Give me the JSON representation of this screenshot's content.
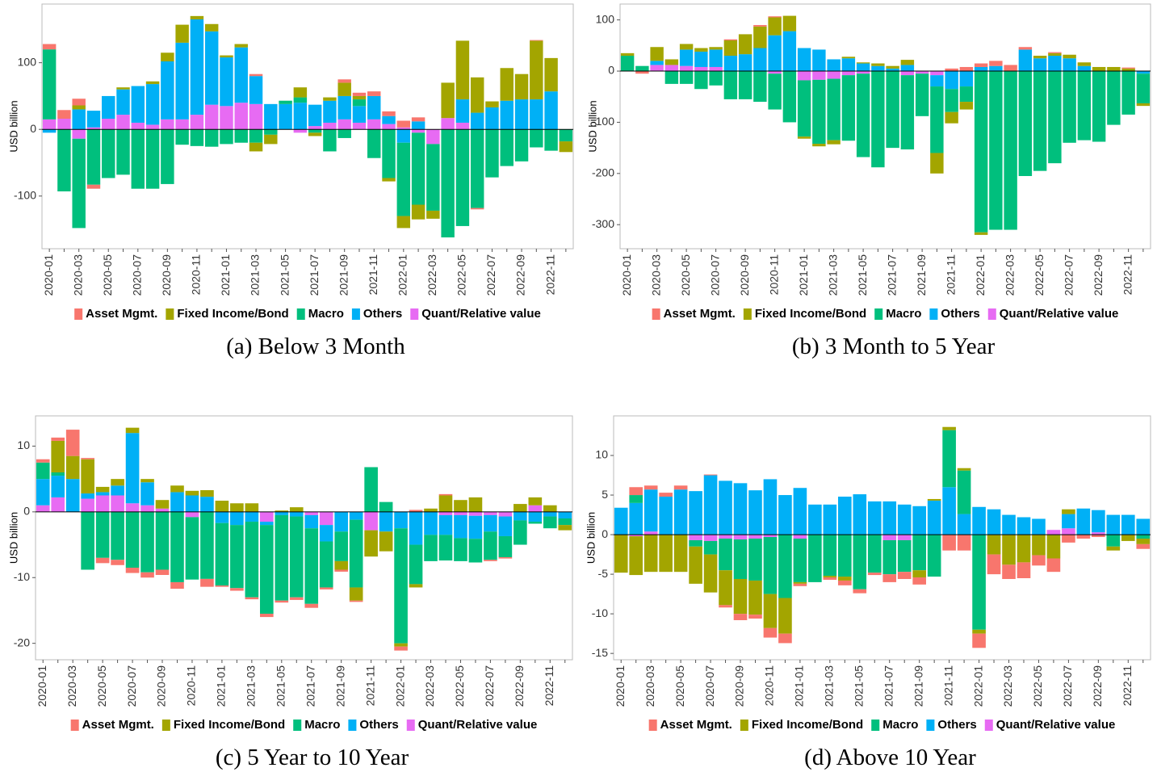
{
  "chart_data": [
    {
      "type": "bar",
      "stacked": true,
      "ylabel": "USD billion",
      "caption": "(a) Below 3 Month",
      "categories": [
        "2020-01",
        null,
        "2020-03",
        null,
        "2020-05",
        null,
        "2020-07",
        null,
        "2020-09",
        null,
        "2020-11",
        null,
        "2021-01",
        null,
        "2021-03",
        null,
        "2021-05",
        null,
        "2021-07",
        null,
        "2021-09",
        null,
        "2021-11",
        null,
        "2022-01",
        null,
        "2022-03",
        null,
        "2022-05",
        null,
        "2022-07",
        null,
        "2022-09",
        null,
        "2022-11",
        null
      ],
      "ylim": [
        -179,
        188
      ],
      "yticks": [
        -100,
        0,
        100
      ],
      "series": [
        {
          "name": "Asset Mgmt.",
          "color": "#F8766D",
          "values": [
            8,
            13,
            10,
            -6,
            0,
            0,
            0,
            0,
            0,
            0,
            0,
            0,
            0,
            0,
            3,
            0,
            0,
            0,
            0,
            0,
            5,
            5,
            7,
            7,
            10,
            6,
            0,
            0,
            0,
            -2,
            0,
            0,
            0,
            1,
            0,
            0
          ]
        },
        {
          "name": "Fixed Income/Bond",
          "color": "#A3A500",
          "values": [
            0,
            0,
            6,
            0,
            0,
            3,
            0,
            4,
            13,
            27,
            5,
            11,
            3,
            5,
            -13,
            -14,
            0,
            15,
            -5,
            5,
            20,
            5,
            0,
            -5,
            -18,
            -22,
            -12,
            53,
            88,
            53,
            9,
            49,
            38,
            88,
            50,
            -16
          ]
        },
        {
          "name": "Macro",
          "color": "#00BF7D",
          "values": [
            105,
            -93,
            -134,
            -83,
            -73,
            -68,
            -89,
            -89,
            -82,
            -23,
            -25,
            -26,
            -22,
            -20,
            -20,
            -8,
            5,
            8,
            -5,
            -33,
            -13,
            10,
            -43,
            -73,
            -110,
            -108,
            -100,
            -162,
            -145,
            -118,
            -72,
            -55,
            -48,
            -27,
            -32,
            -18
          ]
        },
        {
          "name": "Others",
          "color": "#00B0F6",
          "values": [
            -5,
            0,
            30,
            25,
            34,
            38,
            55,
            61,
            87,
            115,
            143,
            110,
            73,
            83,
            42,
            38,
            38,
            40,
            32,
            33,
            35,
            25,
            35,
            12,
            -20,
            12,
            0,
            0,
            35,
            25,
            33,
            43,
            45,
            45,
            57,
            0
          ]
        },
        {
          "name": "Quant/Relative value",
          "color": "#E76BF3",
          "values": [
            15,
            16,
            -14,
            3,
            16,
            22,
            10,
            7,
            15,
            15,
            22,
            37,
            35,
            40,
            38,
            0,
            0,
            -5,
            5,
            10,
            15,
            10,
            15,
            8,
            3,
            -5,
            -22,
            17,
            10,
            0,
            0,
            0,
            0,
            0,
            0,
            0
          ]
        }
      ]
    },
    {
      "type": "bar",
      "stacked": true,
      "ylabel": "USD billion",
      "caption": "(b) 3 Month to 5 Year",
      "categories": [
        "2020-01",
        null,
        "2020-03",
        null,
        "2020-05",
        null,
        "2020-07",
        null,
        "2020-09",
        null,
        "2020-11",
        null,
        "2021-01",
        null,
        "2021-03",
        null,
        "2021-05",
        null,
        "2021-07",
        null,
        "2021-09",
        null,
        "2021-11",
        null,
        "2022-01",
        null,
        "2022-03",
        null,
        "2022-05",
        null,
        "2022-07",
        null,
        "2022-09",
        null,
        "2022-11",
        null
      ],
      "ylim": [
        -347,
        131
      ],
      "yticks": [
        -300,
        -200,
        -100,
        0,
        100
      ],
      "series": [
        {
          "name": "Asset Mgmt.",
          "color": "#F8766D",
          "values": [
            0,
            -5,
            0,
            0,
            0,
            0,
            0,
            2,
            0,
            3,
            2,
            0,
            0,
            0,
            0,
            0,
            0,
            0,
            0,
            0,
            0,
            0,
            5,
            8,
            7,
            10,
            12,
            5,
            0,
            2,
            0,
            0,
            0,
            0,
            2,
            0
          ]
        },
        {
          "name": "Fixed Income/Bond",
          "color": "#A3A500",
          "values": [
            5,
            0,
            27,
            11,
            11,
            7,
            5,
            30,
            39,
            42,
            35,
            30,
            -4,
            -5,
            -8,
            3,
            2,
            5,
            5,
            10,
            0,
            -40,
            -22,
            -15,
            -5,
            0,
            0,
            0,
            5,
            5,
            7,
            7,
            8,
            8,
            5,
            -5
          ]
        },
        {
          "name": "Macro",
          "color": "#00BF7D",
          "values": [
            30,
            10,
            0,
            -25,
            -25,
            -35,
            -28,
            -55,
            -55,
            -60,
            -70,
            -100,
            -110,
            -125,
            -120,
            -128,
            -163,
            -188,
            -150,
            -145,
            -83,
            -130,
            -45,
            -30,
            -315,
            -310,
            -310,
            -205,
            -195,
            -180,
            -140,
            -135,
            -138,
            -105,
            -85,
            -58
          ]
        },
        {
          "name": "Others",
          "color": "#00B0F6",
          "values": [
            0,
            0,
            8,
            0,
            32,
            30,
            34,
            30,
            33,
            45,
            70,
            78,
            45,
            42,
            23,
            25,
            15,
            10,
            5,
            12,
            0,
            -22,
            -35,
            -30,
            8,
            10,
            0,
            42,
            25,
            30,
            25,
            10,
            0,
            0,
            0,
            -5
          ]
        },
        {
          "name": "Quant/Relative value",
          "color": "#E76BF3",
          "values": [
            0,
            0,
            12,
            12,
            10,
            8,
            8,
            0,
            0,
            0,
            -5,
            0,
            -18,
            -17,
            -15,
            -8,
            -5,
            0,
            0,
            -8,
            -5,
            -8,
            0,
            0,
            0,
            0,
            0,
            0,
            0,
            0,
            0,
            0,
            0,
            0,
            0,
            0
          ]
        }
      ]
    },
    {
      "type": "bar",
      "stacked": true,
      "ylabel": "USD billion",
      "caption": "(c) 5 Year to 10 Year",
      "categories": [
        "2020-01",
        null,
        "2020-03",
        null,
        "2020-05",
        null,
        "2020-07",
        null,
        "2020-09",
        null,
        "2020-11",
        null,
        "2021-01",
        null,
        "2021-03",
        null,
        "2021-05",
        null,
        "2021-07",
        null,
        "2021-09",
        null,
        "2021-11",
        null,
        "2022-01",
        null,
        "2022-03",
        null,
        "2022-05",
        null,
        "2022-07",
        null,
        "2022-09",
        null,
        "2022-11",
        null
      ],
      "ylim": [
        -22.5,
        14.6
      ],
      "yticks": [
        -20,
        -10,
        0,
        10
      ],
      "series": [
        {
          "name": "Asset Mgmt.",
          "color": "#F8766D",
          "values": [
            0.5,
            0.5,
            4,
            0.2,
            -0.8,
            -0.8,
            -0.8,
            -0.8,
            -0.8,
            -1,
            0,
            -1.2,
            -0.2,
            -0.4,
            -0.3,
            -0.5,
            -0.3,
            -0.4,
            -0.6,
            -0.3,
            -0.3,
            -0.2,
            0,
            0,
            -0.6,
            0.3,
            0,
            0.2,
            0,
            0,
            -0.2,
            -0.2,
            0,
            0,
            0,
            0
          ]
        },
        {
          "name": "Fixed Income/Bond",
          "color": "#A3A500",
          "values": [
            0,
            4.8,
            3.5,
            5.2,
            0.8,
            1,
            0.8,
            0.5,
            1.3,
            1,
            0.7,
            1,
            1.7,
            1.3,
            1.3,
            0,
            0.2,
            0.7,
            0,
            0,
            -1.3,
            -2,
            -4,
            -3,
            -0.5,
            -0.5,
            0.5,
            2.5,
            1.8,
            2.2,
            0,
            0,
            1.2,
            1.2,
            1,
            -0.8
          ]
        },
        {
          "name": "Macro",
          "color": "#00BF7D",
          "values": [
            2.5,
            0.5,
            0,
            -8.8,
            -7,
            -7.3,
            -8.5,
            -9.2,
            -8.8,
            -10.7,
            -9.5,
            -10.2,
            -9.5,
            -9.6,
            -11.5,
            -13.5,
            -13,
            -12.3,
            -11.5,
            -7,
            -4.5,
            -10.3,
            6.8,
            1.5,
            -17.5,
            -6,
            -4,
            -3.9,
            -3.5,
            -3.6,
            -4.3,
            -3.2,
            -3.7,
            -0.3,
            -1.8,
            -1
          ]
        },
        {
          "name": "Others",
          "color": "#00B0F6",
          "values": [
            4,
            3.3,
            5,
            0.8,
            0.5,
            1.5,
            10.7,
            3.5,
            0,
            3,
            2.5,
            2.3,
            -1.7,
            -2,
            -1.5,
            -0.5,
            -0.5,
            -0.7,
            -2,
            -2.5,
            -3,
            -1.2,
            0,
            -3,
            -2.5,
            -5,
            -3.5,
            -3,
            -3.5,
            -3.5,
            -2.5,
            -3,
            -1.3,
            -1.5,
            -0.7,
            -1
          ]
        },
        {
          "name": "Quant/Relative value",
          "color": "#E76BF3",
          "values": [
            1,
            2.2,
            0,
            2,
            2.5,
            2.5,
            1.3,
            1,
            0.5,
            0,
            -0.8,
            0,
            0,
            0,
            0,
            -1.5,
            0,
            0,
            -0.5,
            -2,
            0,
            0,
            -2.8,
            0,
            0,
            0,
            0,
            -0.5,
            -0.5,
            -0.6,
            -0.5,
            -0.7,
            0,
            1,
            0,
            0
          ]
        }
      ]
    },
    {
      "type": "bar",
      "stacked": true,
      "ylabel": "USD billion",
      "caption": "(d) Above 10 Year",
      "categories": [
        "2020-01",
        null,
        "2020-03",
        null,
        "2020-05",
        null,
        "2020-07",
        null,
        "2020-09",
        null,
        "2020-11",
        null,
        "2021-01",
        null,
        "2021-03",
        null,
        "2021-05",
        null,
        "2021-07",
        null,
        "2021-09",
        null,
        "2021-11",
        null,
        "2022-01",
        null,
        "2022-03",
        null,
        "2022-05",
        null,
        "2022-07",
        null,
        "2022-09",
        null,
        "2022-11",
        null
      ],
      "ylim": [
        -15.8,
        15
      ],
      "yticks": [
        -15,
        -10,
        -5,
        0,
        5,
        10
      ],
      "series": [
        {
          "name": "Asset Mgmt.",
          "color": "#F8766D",
          "values": [
            0,
            1,
            0.5,
            0.5,
            0.5,
            0,
            0.1,
            -0.3,
            -0.8,
            -0.5,
            -1.2,
            -1.2,
            -0.3,
            0,
            -0.3,
            -0.6,
            -0.5,
            -0.3,
            -1,
            -0.9,
            -0.9,
            0,
            -2,
            -2,
            -1.8,
            -2.5,
            -1.8,
            -2,
            -1.3,
            -1.7,
            -1,
            -0.5,
            -0.3,
            0,
            0,
            -0.6
          ]
        },
        {
          "name": "Fixed Income/Bond",
          "color": "#A3A500",
          "values": [
            -4.8,
            -4.9,
            -4.7,
            -4.7,
            -4.7,
            -4.7,
            -4.8,
            -4.4,
            -4.4,
            -4.3,
            -4.3,
            -4.5,
            -0.2,
            0,
            -0.2,
            -0.5,
            0,
            0,
            0,
            0,
            -0.9,
            0.2,
            0.4,
            0.3,
            -0.5,
            -2.5,
            -3.8,
            -3.5,
            -2.6,
            -3,
            0.6,
            0,
            0,
            -0.5,
            -0.8,
            -0.7
          ]
        },
        {
          "name": "Macro",
          "color": "#00BF7D",
          "values": [
            0,
            1,
            0,
            0,
            0,
            -0.8,
            -1.7,
            -4,
            -5,
            -5.3,
            -7.2,
            -8,
            -5.5,
            -6,
            -5.2,
            -5.3,
            -6.9,
            -4.8,
            -4.3,
            -4,
            -4.5,
            -5.3,
            7.2,
            5.5,
            -12,
            0,
            0,
            0,
            0,
            0,
            0,
            0,
            0,
            -1.5,
            0,
            -0.5
          ]
        },
        {
          "name": "Others",
          "color": "#00B0F6",
          "values": [
            3.4,
            4,
            5.3,
            4.8,
            5.7,
            5.5,
            7.5,
            6.8,
            6.5,
            5.6,
            7,
            5,
            5.9,
            3.8,
            3.8,
            4.8,
            5.1,
            4.2,
            4.2,
            3.8,
            3.6,
            4.3,
            6,
            2.6,
            3.5,
            3.2,
            2.5,
            2.2,
            2,
            0,
            1.8,
            3.3,
            2.8,
            2.5,
            2.5,
            2
          ]
        },
        {
          "name": "Quant/Relative value",
          "color": "#E76BF3",
          "values": [
            0,
            -0.2,
            0.4,
            0,
            0,
            -0.7,
            -0.8,
            -0.5,
            -0.6,
            -0.5,
            -0.3,
            0,
            -0.5,
            0,
            0,
            0,
            0,
            0,
            -0.7,
            -0.7,
            0,
            0,
            0,
            0,
            0,
            0,
            0,
            0,
            0,
            0.6,
            0.8,
            0,
            0.3,
            0,
            0,
            0
          ]
        }
      ]
    }
  ]
}
